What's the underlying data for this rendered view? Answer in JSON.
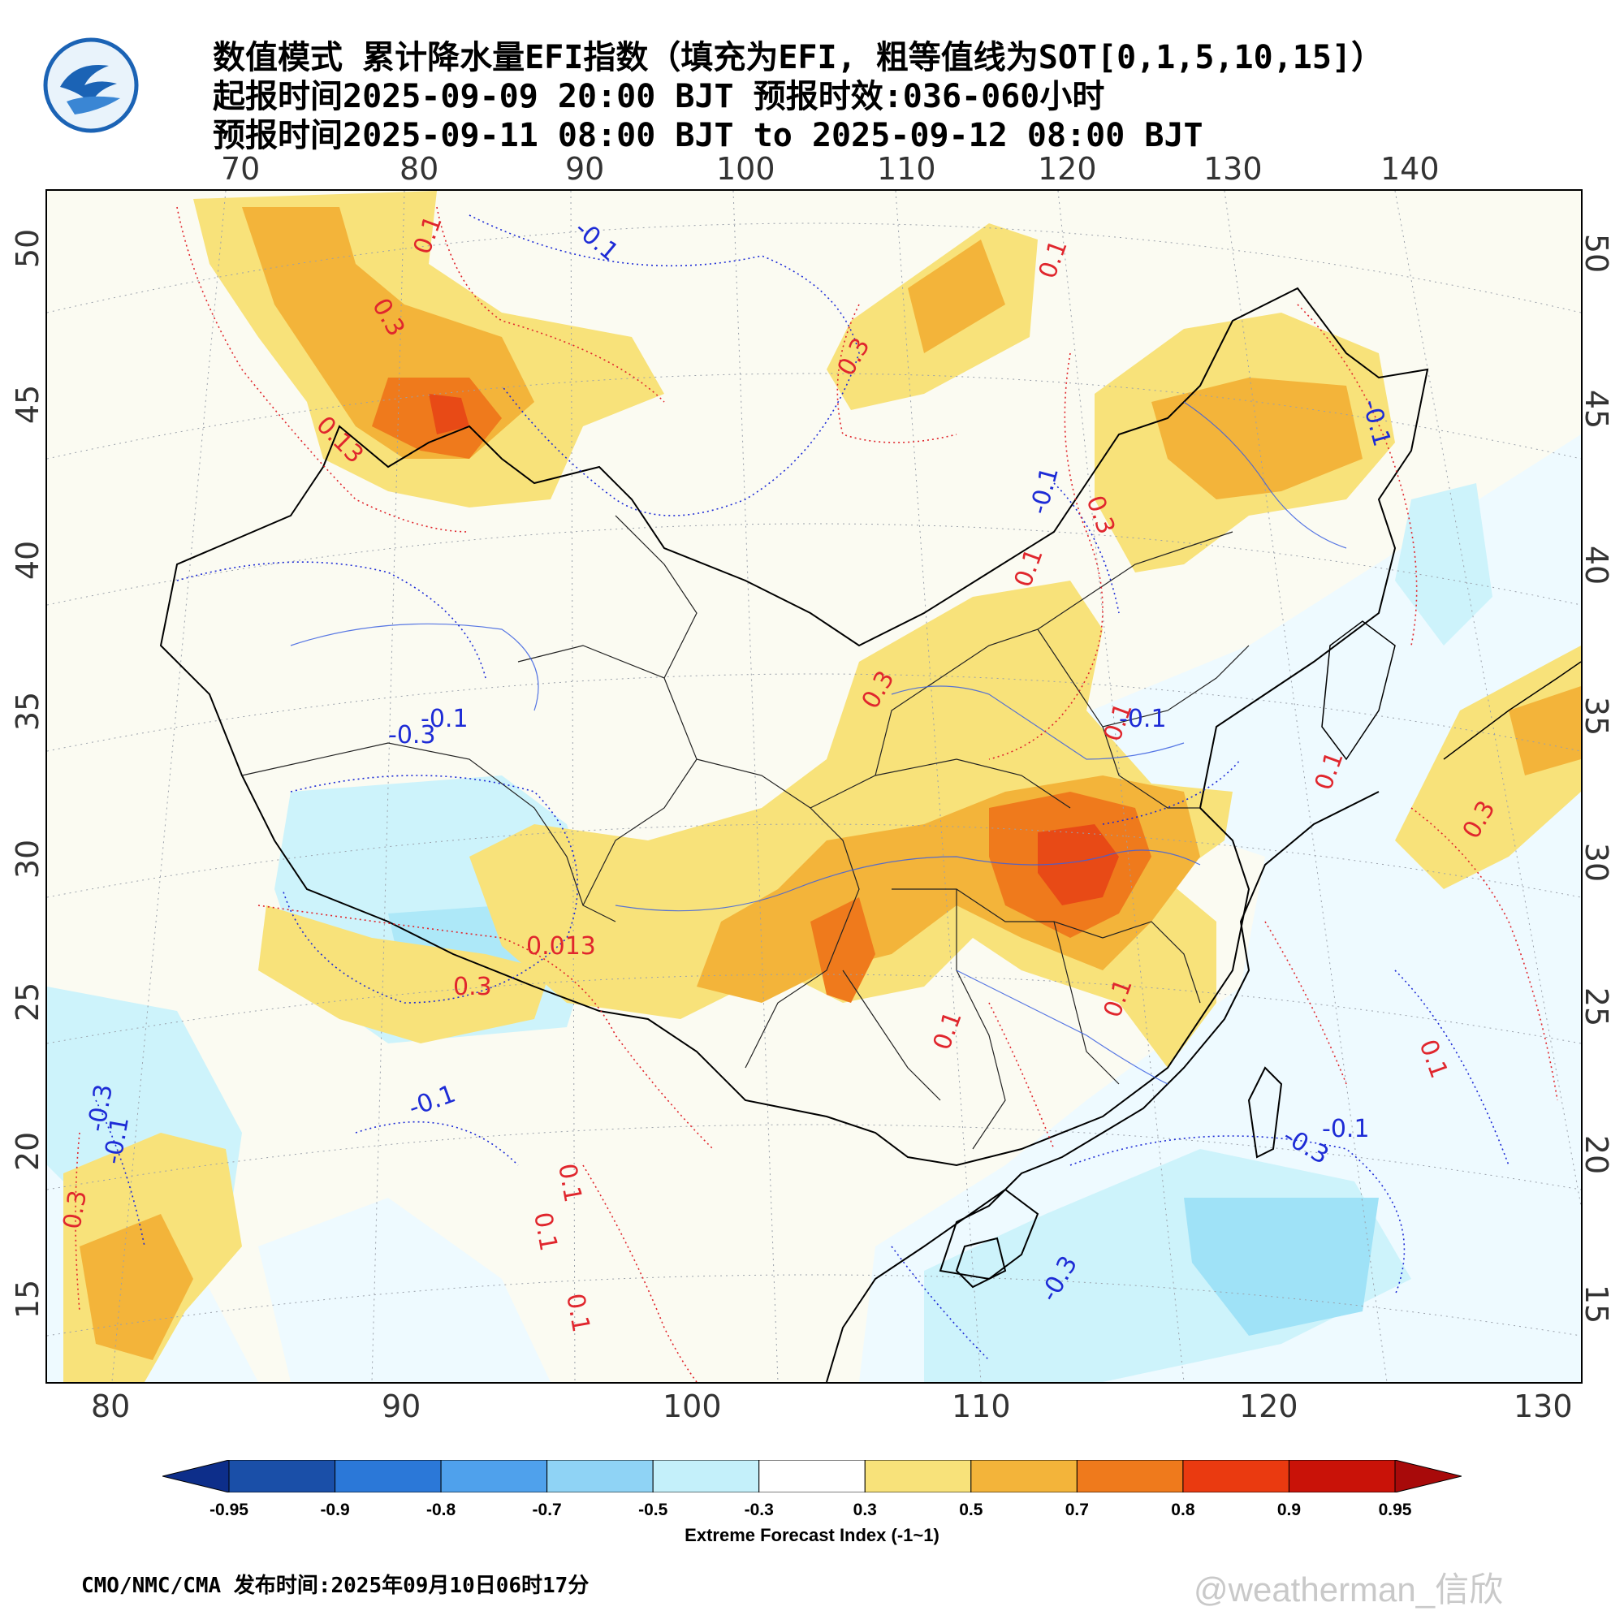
{
  "header": {
    "title_line1": "数值模式 累计降水量EFI指数（填充为EFI, 粗等值线为SOT[0,1,5,10,15]）",
    "title_line2": "起报时间2025-09-09 20:00 BJT 预报时效:036-060小时",
    "title_line3": "预报时间2025-09-11 08:00 BJT to 2025-09-12 08:00 BJT"
  },
  "map": {
    "top_lon_ticks": [
      "70",
      "80",
      "90",
      "100",
      "110",
      "120",
      "130",
      "140"
    ],
    "bottom_lon_ticks": [
      "80",
      "90",
      "100",
      "110",
      "120",
      "130"
    ],
    "left_lat_ticks": [
      "50",
      "45",
      "40",
      "35",
      "30",
      "25",
      "20",
      "15"
    ],
    "right_lat_ticks": [
      "50",
      "45",
      "40",
      "35",
      "30",
      "25",
      "20",
      "15"
    ],
    "contour_labels_blue": [
      "-0.1",
      "-0.1",
      "-0.3",
      "-0.1",
      "-0.1",
      "-0.1",
      "-0.3",
      "-0.1",
      "-0.3",
      "-0.3",
      "-0.1",
      "-0.1"
    ],
    "contour_labels_red": [
      "0.1",
      "0.3",
      "0.13",
      "0.1",
      "0.3",
      "0.1",
      "0.3",
      "0.1",
      "0.3",
      "0.1",
      "0.013",
      "0.3",
      "0.1",
      "0.1",
      "0.1",
      "0.3",
      "0.1",
      "0.1",
      "0.1",
      "0.3"
    ],
    "colors": {
      "land_bg": "#fbfbf2",
      "ocean_bg": "#eefaff",
      "efi_0_3": "#f8e27a",
      "efi_0_5": "#f3b43a",
      "efi_0_7": "#ef7a1c",
      "efi_0_8": "#e84a16",
      "neg_0_3": "#cdf3fb",
      "neg_0_5": "#9fe2f7"
    }
  },
  "colorbar": {
    "labels": [
      "-0.95",
      "-0.9",
      "-0.8",
      "-0.7",
      "-0.5",
      "-0.3",
      "0.3",
      "0.5",
      "0.7",
      "0.8",
      "0.9",
      "0.95"
    ],
    "colors": [
      "#1a4fa8",
      "#2b78d8",
      "#4fa1ec",
      "#8fd3f5",
      "#c4f0fa",
      "#ffffff",
      "#f8e27a",
      "#f3b43a",
      "#ef7a1c",
      "#ea3a10",
      "#c91208"
    ],
    "end_left_color": "#0d2e8a",
    "end_right_color": "#a80a0a",
    "title": "Extreme Forecast Index (-1~1)"
  },
  "footer": {
    "text": "CMO/NMC/CMA 发布时间:2025年09月10日06时17分",
    "watermark": "@weatherman_信欣"
  }
}
